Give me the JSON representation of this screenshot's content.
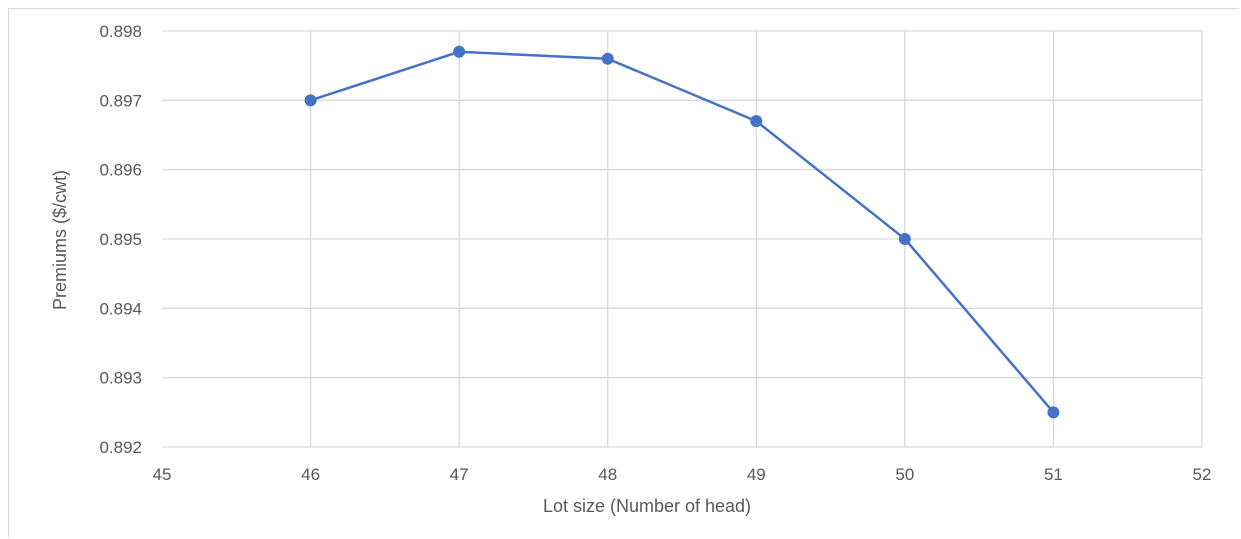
{
  "chart_data": {
    "type": "scatter",
    "title": "",
    "xlabel": "Lot size (Number of head)",
    "ylabel": "Premiums ($/cwt)",
    "xlim": [
      45,
      52
    ],
    "ylim": [
      0.892,
      0.898
    ],
    "x_ticks": [
      "45",
      "46",
      "47",
      "48",
      "49",
      "50",
      "51",
      "52"
    ],
    "y_ticks": [
      "0.892",
      "0.893",
      "0.894",
      "0.895",
      "0.896",
      "0.897",
      "0.898"
    ],
    "grid": true,
    "series": [
      {
        "color": "#4472c4",
        "x": [
          46,
          47,
          48,
          49,
          50,
          51
        ],
        "y": [
          0.897,
          0.8977,
          0.8976,
          0.8967,
          0.895,
          0.8925
        ]
      }
    ]
  }
}
